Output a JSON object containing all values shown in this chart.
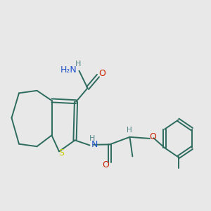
{
  "background_color": "#e8e8e8",
  "bond_color": "#2d6b5e",
  "sulfur_color": "#cccc00",
  "nitrogen_color": "#2255cc",
  "oxygen_color": "#cc2200",
  "hydrogen_color": "#558888",
  "figsize": [
    3.0,
    3.0
  ],
  "dpi": 100,
  "xlim": [
    0.0,
    1.0
  ],
  "ylim": [
    0.15,
    1.0
  ]
}
